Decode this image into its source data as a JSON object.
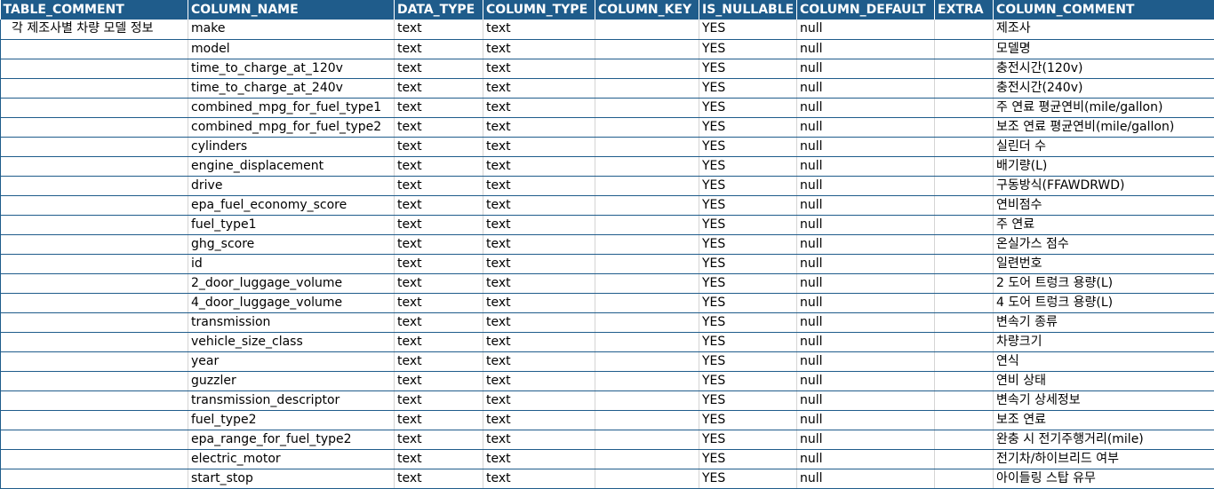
{
  "headers": [
    "TABLE_COMMENT",
    "COLUMN_NAME",
    "DATA_TYPE",
    "COLUMN_TYPE",
    "COLUMN_KEY",
    "IS_NULLABLE",
    "COLUMN_DEFAULT",
    "EXTRA",
    "COLUMN_COMMENT"
  ],
  "rows": [
    [
      "각 제조사별 차량 모델 정보",
      "make",
      "text",
      "text",
      "",
      "YES",
      "null",
      "",
      "제조사"
    ],
    [
      "",
      "model",
      "text",
      "text",
      "",
      "YES",
      "null",
      "",
      "모델명"
    ],
    [
      "",
      "time_to_charge_at_120v",
      "text",
      "text",
      "",
      "YES",
      "null",
      "",
      "충전시간(120v)"
    ],
    [
      "",
      "time_to_charge_at_240v",
      "text",
      "text",
      "",
      "YES",
      "null",
      "",
      "충전시간(240v)"
    ],
    [
      "",
      "combined_mpg_for_fuel_type1",
      "text",
      "text",
      "",
      "YES",
      "null",
      "",
      "주 연료 평균연비(mile/gallon)"
    ],
    [
      "",
      "combined_mpg_for_fuel_type2",
      "text",
      "text",
      "",
      "YES",
      "null",
      "",
      "보조 연료 평균연비(mile/gallon)"
    ],
    [
      "",
      "cylinders",
      "text",
      "text",
      "",
      "YES",
      "null",
      "",
      "실린더 수"
    ],
    [
      "",
      "engine_displacement",
      "text",
      "text",
      "",
      "YES",
      "null",
      "",
      "배기량(L)"
    ],
    [
      "",
      "drive",
      "text",
      "text",
      "",
      "YES",
      "null",
      "",
      "구동방식(FFAWDRWD)"
    ],
    [
      "",
      "epa_fuel_economy_score",
      "text",
      "text",
      "",
      "YES",
      "null",
      "",
      "연비점수"
    ],
    [
      "",
      "fuel_type1",
      "text",
      "text",
      "",
      "YES",
      "null",
      "",
      "주 연료"
    ],
    [
      "",
      "ghg_score",
      "text",
      "text",
      "",
      "YES",
      "null",
      "",
      "온실가스 점수"
    ],
    [
      "",
      "id",
      "text",
      "text",
      "",
      "YES",
      "null",
      "",
      "일련번호"
    ],
    [
      "",
      "2_door_luggage_volume",
      "text",
      "text",
      "",
      "YES",
      "null",
      "",
      "2 도어 트렁크 용량(L)"
    ],
    [
      "",
      "4_door_luggage_volume",
      "text",
      "text",
      "",
      "YES",
      "null",
      "",
      "4 도어 트렁크 용량(L)"
    ],
    [
      "",
      "transmission",
      "text",
      "text",
      "",
      "YES",
      "null",
      "",
      "변속기 종류"
    ],
    [
      "",
      "vehicle_size_class",
      "text",
      "text",
      "",
      "YES",
      "null",
      "",
      "차량크기"
    ],
    [
      "",
      "year",
      "text",
      "text",
      "",
      "YES",
      "null",
      "",
      "연식"
    ],
    [
      "",
      "guzzler",
      "text",
      "text",
      "",
      "YES",
      "null",
      "",
      "연비 상태"
    ],
    [
      "",
      "transmission_descriptor",
      "text",
      "text",
      "",
      "YES",
      "null",
      "",
      "변속기 상세정보"
    ],
    [
      "",
      "fuel_type2",
      "text",
      "text",
      "",
      "YES",
      "null",
      "",
      "보조 연료"
    ],
    [
      "",
      "epa_range_for_fuel_type2",
      "text",
      "text",
      "",
      "YES",
      "null",
      "",
      "완충 시 전기주행거리(mile)"
    ],
    [
      "",
      "electric_motor",
      "text",
      "text",
      "",
      "YES",
      "null",
      "",
      "전기차/하이브리드 여부"
    ],
    [
      "",
      "start_stop",
      "text",
      "text",
      "",
      "YES",
      "null",
      "",
      "아이들링 스탑 유무"
    ]
  ]
}
